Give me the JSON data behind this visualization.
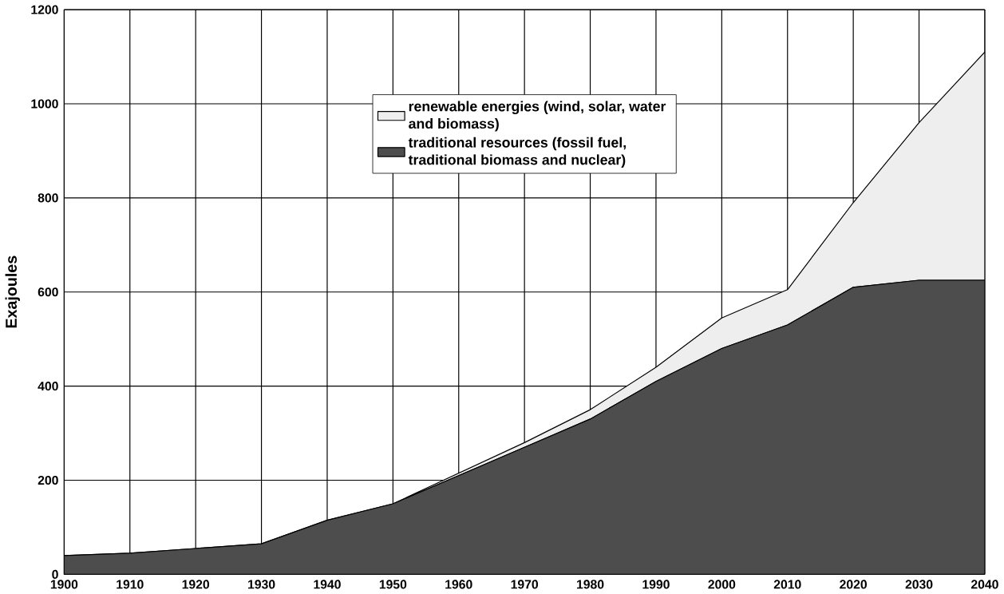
{
  "chart_data": {
    "type": "area",
    "stacked": true,
    "ylabel": "Exajoules",
    "x": [
      1900,
      1910,
      1920,
      1930,
      1940,
      1950,
      1960,
      1970,
      1980,
      1990,
      2000,
      2010,
      2020,
      2030,
      2040
    ],
    "series": [
      {
        "name": "traditional resources (fossil fuel, traditional biomass and nuclear)",
        "color": "#4d4d4d",
        "values": [
          40,
          45,
          55,
          65,
          115,
          150,
          210,
          270,
          330,
          410,
          480,
          530,
          610,
          625,
          625
        ]
      },
      {
        "name": "renewable energies (wind, solar, water and biomass)",
        "color": "#eeeeee",
        "values": [
          0,
          0,
          0,
          0,
          0,
          0,
          5,
          10,
          20,
          30,
          65,
          75,
          180,
          335,
          485
        ]
      }
    ],
    "xlim": [
      1900,
      2040
    ],
    "xticks": [
      1900,
      1910,
      1920,
      1930,
      1940,
      1950,
      1960,
      1970,
      1980,
      1990,
      2000,
      2010,
      2020,
      2030,
      2040
    ],
    "ylim": [
      0,
      1200
    ],
    "yticks": [
      0,
      200,
      400,
      600,
      800,
      1000,
      1200
    ],
    "grid": true,
    "legend": "top"
  }
}
